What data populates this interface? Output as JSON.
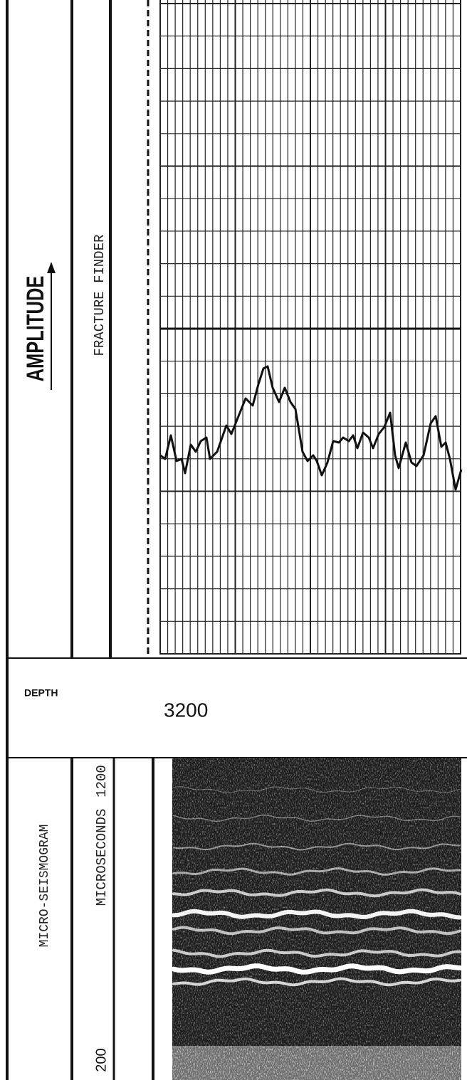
{
  "log_track": {
    "title": "AMPLITUDE",
    "curve_label": "FRACTURE FINDER"
  },
  "depth": {
    "label": "DEPTH",
    "value": 3200
  },
  "micro_seismogram": {
    "title": "MICRO-SEISMOGRAM",
    "unit": "MICROSECONDS",
    "scale_max": 1200,
    "scale_min": 200
  }
}
